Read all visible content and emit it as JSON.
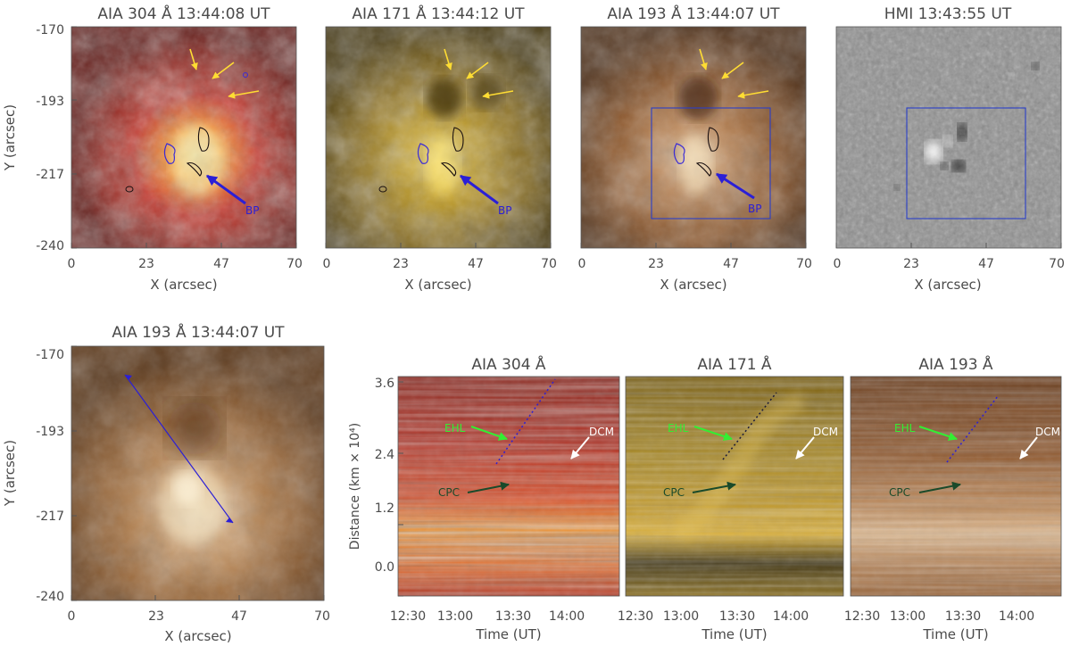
{
  "top_panels": [
    {
      "title": "AIA 304 Å 13:44:08 UT",
      "xlabel": "X (arcsec)",
      "ylabel": "Y (arcsec)",
      "xticks": [
        "0",
        "23",
        "47",
        "70"
      ],
      "yticks": [
        "-170",
        "-193",
        "-217",
        "-240"
      ],
      "label": "BP"
    },
    {
      "title": "AIA 171 Å 13:44:12 UT",
      "xlabel": "X (arcsec)",
      "xticks": [
        "0",
        "23",
        "47",
        "70"
      ],
      "label": "BP"
    },
    {
      "title": "AIA 193 Å 13:44:07 UT",
      "xlabel": "X (arcsec)",
      "xticks": [
        "0",
        "23",
        "47",
        "70"
      ],
      "label": "BP"
    },
    {
      "title": "HMI 13:43:55 UT",
      "xlabel": "X (arcsec)",
      "xticks": [
        "0",
        "23",
        "47",
        "70"
      ]
    }
  ],
  "bottom_left": {
    "title": "AIA 193 Å 13:44:07 UT",
    "xlabel": "X (arcsec)",
    "ylabel": "Y (arcsec)",
    "xticks": [
      "0",
      "23",
      "47",
      "70"
    ],
    "yticks": [
      "-170",
      "-193",
      "-217",
      "-240"
    ]
  },
  "time_distance": {
    "ylabel": "Distance (km × 10⁴)",
    "xlabel": "Time (UT)",
    "yticks": [
      "3.6",
      "2.4",
      "1.2",
      "0.0"
    ],
    "xticks": [
      "12:30",
      "13:00",
      "13:30",
      "14:00"
    ],
    "panels": [
      {
        "title": "AIA 304 Å"
      },
      {
        "title": "AIA 171 Å"
      },
      {
        "title": "AIA 193 Å"
      }
    ],
    "annotations": {
      "ehl": "EHL",
      "cpc": "CPC",
      "dcm": "DCM"
    }
  },
  "colors": {
    "arrow_yellow": "#ffdd33",
    "arrow_blue": "#2b1fd6",
    "box_blue": "#2a3fc8",
    "ehl_green": "#33ee33",
    "cpc_green": "#1a4a2a",
    "dcm_white": "#ffffff"
  },
  "chart_data": [
    {
      "type": "image",
      "title": "AIA 304 Å 13:44:08 UT",
      "xlabel": "X (arcsec)",
      "ylabel": "Y (arcsec)",
      "xlim": [
        0,
        70
      ],
      "ylim": [
        -240,
        -170
      ]
    },
    {
      "type": "image",
      "title": "AIA 171 Å 13:44:12 UT",
      "xlabel": "X (arcsec)",
      "xlim": [
        0,
        70
      ],
      "ylim": [
        -240,
        -170
      ]
    },
    {
      "type": "image",
      "title": "AIA 193 Å 13:44:07 UT",
      "xlabel": "X (arcsec)",
      "xlim": [
        0,
        70
      ],
      "ylim": [
        -240,
        -170
      ]
    },
    {
      "type": "image",
      "title": "HMI 13:43:55 UT",
      "xlabel": "X (arcsec)",
      "xlim": [
        0,
        70
      ],
      "ylim": [
        -240,
        -170
      ]
    },
    {
      "type": "image",
      "title": "AIA 193 Å 13:44:07 UT",
      "xlabel": "X (arcsec)",
      "ylabel": "Y (arcsec)",
      "xlim": [
        0,
        70
      ],
      "ylim": [
        -240,
        -170
      ]
    },
    {
      "type": "heatmap",
      "title": "AIA 304 Å",
      "xlabel": "Time (UT)",
      "ylabel": "Distance (km × 10⁴)",
      "ylim": [
        0,
        3.6
      ]
    },
    {
      "type": "heatmap",
      "title": "AIA 171 Å",
      "xlabel": "Time (UT)",
      "ylim": [
        0,
        3.6
      ]
    },
    {
      "type": "heatmap",
      "title": "AIA 193 Å",
      "xlabel": "Time (UT)",
      "ylim": [
        0,
        3.6
      ]
    }
  ]
}
